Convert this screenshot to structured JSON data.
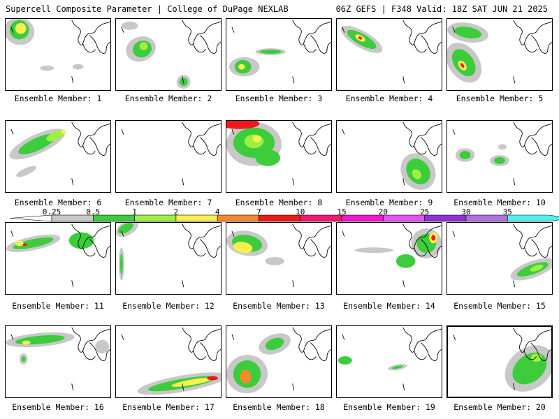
{
  "header": {
    "left": "Supercell Composite Parameter | College of DuPage NEXLAB",
    "right": "06Z GEFS | F348 Valid: 18Z SAT JUN 21 2025"
  },
  "colorbar": {
    "labels": [
      "0.25",
      "0.5",
      "1",
      "2",
      "4",
      "7",
      "10",
      "15",
      "20",
      "25",
      "30",
      "35"
    ],
    "colors": [
      "#c8c8c8",
      "#3ccc3c",
      "#9ef040",
      "#f8f050",
      "#f88a28",
      "#f01818",
      "#f01870",
      "#f018c8",
      "#e850f0",
      "#9030d8",
      "#b070e0",
      "#50f0f0"
    ]
  },
  "members": [
    {
      "label": "Ensemble Member: 1"
    },
    {
      "label": "Ensemble Member: 2"
    },
    {
      "label": "Ensemble Member: 3"
    },
    {
      "label": "Ensemble Member: 4"
    },
    {
      "label": "Ensemble Member: 5"
    },
    {
      "label": "Ensemble Member: 6"
    },
    {
      "label": "Ensemble Member: 7"
    },
    {
      "label": "Ensemble Member: 8"
    },
    {
      "label": "Ensemble Member: 9"
    },
    {
      "label": "Ensemble Member: 10"
    },
    {
      "label": "Ensemble Member: 11"
    },
    {
      "label": "Ensemble Member: 12"
    },
    {
      "label": "Ensemble Member: 13"
    },
    {
      "label": "Ensemble Member: 14"
    },
    {
      "label": "Ensemble Member: 15"
    },
    {
      "label": "Ensemble Member: 16"
    },
    {
      "label": "Ensemble Member: 17"
    },
    {
      "label": "Ensemble Member: 18"
    },
    {
      "label": "Ensemble Member: 19"
    },
    {
      "label": "Ensemble Member: 20"
    }
  ]
}
